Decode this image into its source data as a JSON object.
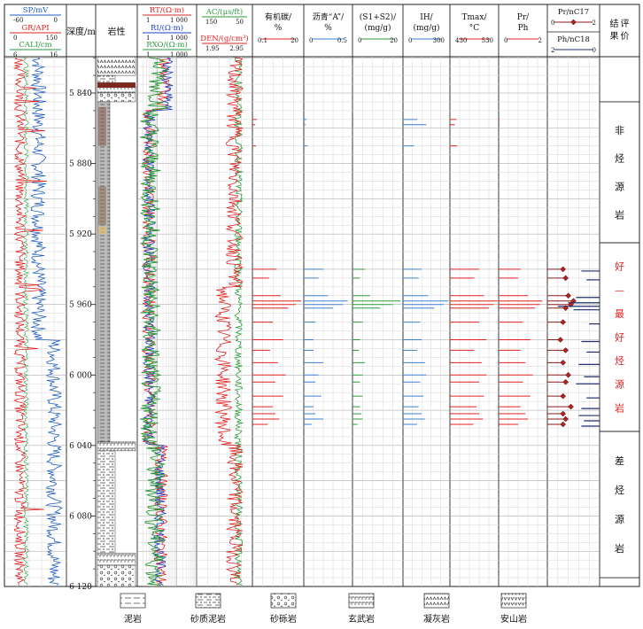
{
  "chart_data": {
    "type": "well-log",
    "depth_axis": {
      "label": "深度/m",
      "range": [
        5810,
        6120
      ],
      "ticks": [
        5840,
        5880,
        5920,
        5960,
        6000,
        6040,
        6080,
        6120
      ],
      "tick_labels": [
        "5 840",
        "5 880",
        "5 920",
        "5 960",
        "6 000",
        "6 040",
        "6 080",
        "6 120"
      ]
    },
    "track1": {
      "curves": [
        {
          "name": "SP/mV",
          "range_labels": [
            "-60",
            "0"
          ],
          "color": "#1f5fbf"
        },
        {
          "name": "GR/API",
          "range_labels": [
            "0",
            "150"
          ],
          "color": "#e02020"
        },
        {
          "name": "CALI/cm",
          "range_labels": [
            "6",
            "16"
          ],
          "color": "#2a9a3a"
        }
      ]
    },
    "lithology_header": "岩性",
    "lithology_intervals": [
      {
        "top": 5810,
        "base": 5830,
        "lith": "凝灰岩"
      },
      {
        "top": 5830,
        "base": 5836,
        "lith": "砂质泥岩"
      },
      {
        "top": 5836,
        "base": 5840,
        "lith": "玄武岩"
      },
      {
        "top": 5840,
        "base": 5845,
        "lith": "砂砾岩"
      },
      {
        "top": 5845,
        "base": 6038,
        "lith": "泥岩"
      },
      {
        "top": 6038,
        "base": 6043,
        "lith": "玄武岩"
      },
      {
        "top": 6043,
        "base": 6101,
        "lith": "砂质泥岩"
      },
      {
        "top": 6101,
        "base": 6108,
        "lith": "玄武岩"
      },
      {
        "top": 6108,
        "base": 6120,
        "lith": "砂砾岩"
      }
    ],
    "track_resistivity": {
      "curves": [
        {
          "name": "RT/(Ω·m)",
          "range_labels": [
            "1",
            "1 000"
          ],
          "color": "#e02020"
        },
        {
          "name": "RI/(Ω·m)",
          "range_labels": [
            "1",
            "1 000"
          ],
          "color": "#1f3fbf"
        },
        {
          "name": "RXO/(Ω·m)",
          "range_labels": [
            "1",
            "1 000"
          ],
          "color": "#2a9a3a"
        }
      ]
    },
    "track_sonic": {
      "curves": [
        {
          "name": "AC/(μs/ft)",
          "range_labels": [
            "150",
            "50"
          ],
          "color": "#2a9a3a"
        },
        {
          "name": "DEN/(g/cm³)",
          "range_labels": [
            "1.95",
            "2.95"
          ],
          "color": "#e02020"
        }
      ]
    },
    "geochem_tracks": [
      {
        "key": "toc",
        "label": "有机碳/%",
        "range": [
          0.1,
          20
        ],
        "range_labels": [
          "0.1",
          "20"
        ],
        "color": "#e02020"
      },
      {
        "key": "bitumen",
        "label": "沥青“A”/%",
        "range": [
          0,
          0.5
        ],
        "range_labels": [
          "0",
          "0.5"
        ],
        "color": "#3a7fcf"
      },
      {
        "key": "s1s2",
        "label": "(S1+S2)/(mg/g)",
        "range": [
          0,
          20
        ],
        "range_labels": [
          "0",
          "20"
        ],
        "color": "#2a9a3a"
      },
      {
        "key": "ih",
        "label": "IH/(mg/g)",
        "range": [
          0,
          300
        ],
        "range_labels": [
          "0",
          "300"
        ],
        "color": "#3a7fcf"
      },
      {
        "key": "tmax",
        "label": "Tmax/°C",
        "range": [
          430,
          530
        ],
        "range_labels": [
          "430",
          "530"
        ],
        "color": "#e02020"
      },
      {
        "key": "prph",
        "label": "Pr/Ph",
        "range": [
          0,
          2
        ],
        "range_labels": [
          "0",
          "2"
        ],
        "color": "#e02020"
      }
    ],
    "ratio_track": {
      "curves": [
        {
          "name": "Pr/nC17",
          "range_labels": [
            "0",
            "2"
          ],
          "color": "#8b1a1a"
        },
        {
          "name": "Ph/nC18",
          "range_labels": [
            "2",
            "0"
          ],
          "color": "#1f2f6f"
        }
      ]
    },
    "samples": [
      {
        "depth": 5855,
        "toc": 1.8,
        "bitumen": 0.03,
        "s1s2": 0.3,
        "ih": 90,
        "tmax": 443,
        "prph": 0
      },
      {
        "depth": 5858,
        "toc": 1.2,
        "bitumen": 0.02,
        "s1s2": 0.2,
        "ih": 150,
        "tmax": 440,
        "prph": 0
      },
      {
        "depth": 5870,
        "toc": 1.5,
        "bitumen": 0.04,
        "s1s2": 0.2,
        "ih": 70,
        "tmax": 445,
        "prph": 0
      },
      {
        "depth": 5940,
        "toc": 9.5,
        "bitumen": 0.2,
        "s1s2": 5,
        "ih": 120,
        "tmax": 490,
        "prph": 0.9,
        "pr_nc17": 0.6,
        "ph_nc18": 0.7
      },
      {
        "depth": 5945,
        "toc": 6.5,
        "bitumen": 0.15,
        "s1s2": 3,
        "ih": 100,
        "tmax": 480,
        "prph": 0.8,
        "pr_nc17": 0.7,
        "ph_nc18": 0.5
      },
      {
        "depth": 5955,
        "toc": 11.0,
        "bitumen": 0.25,
        "s1s2": 7,
        "ih": 160,
        "tmax": 500,
        "prph": 1.2,
        "pr_nc17": 0.8,
        "ph_nc18": 0.9
      },
      {
        "depth": 5958,
        "toc": 19.0,
        "bitumen": 0.45,
        "s1s2": 19,
        "ih": 290,
        "tmax": 528,
        "prph": 1.8,
        "pr_nc17": 1.0,
        "ph_nc18": 1.2
      },
      {
        "depth": 5960,
        "toc": 17.0,
        "bitumen": 0.4,
        "s1s2": 16,
        "ih": 260,
        "tmax": 520,
        "prph": 1.7,
        "pr_nc17": 0.9,
        "ph_nc18": 1.6
      },
      {
        "depth": 5962,
        "toc": 14.0,
        "bitumen": 0.3,
        "s1s2": 11,
        "ih": 200,
        "tmax": 510,
        "prph": 1.5,
        "pr_nc17": 0.7,
        "ph_nc18": 1.0
      },
      {
        "depth": 5970,
        "toc": 8.0,
        "bitumen": 0.12,
        "s1s2": 4,
        "ih": 110,
        "tmax": 490,
        "prph": 1.0,
        "pr_nc17": 0.6,
        "ph_nc18": 0.4
      },
      {
        "depth": 5980,
        "toc": 12.0,
        "bitumen": 0.1,
        "s1s2": 3,
        "ih": 120,
        "tmax": 505,
        "prph": 1.3,
        "pr_nc17": 0.5,
        "ph_nc18": 0.7
      },
      {
        "depth": 5986,
        "toc": 7.0,
        "bitumen": 0.1,
        "s1s2": 2.5,
        "ih": 90,
        "tmax": 480,
        "prph": 0.9,
        "pr_nc17": 0.7,
        "ph_nc18": 0.5
      },
      {
        "depth": 5993,
        "toc": 10.0,
        "bitumen": 0.2,
        "s1s2": 5,
        "ih": 140,
        "tmax": 495,
        "prph": 1.1,
        "pr_nc17": 0.6,
        "ph_nc18": 0.8
      },
      {
        "depth": 6000,
        "toc": 13.0,
        "bitumen": 0.15,
        "s1s2": 4,
        "ih": 150,
        "tmax": 505,
        "prph": 1.4,
        "pr_nc17": 0.8,
        "ph_nc18": 0.6
      },
      {
        "depth": 6004,
        "toc": 9.0,
        "bitumen": 0.12,
        "s1s2": 3,
        "ih": 110,
        "tmax": 490,
        "prph": 1.0,
        "pr_nc17": 0.7,
        "ph_nc18": 0.9
      },
      {
        "depth": 6012,
        "toc": 12.0,
        "bitumen": 0.18,
        "s1s2": 4,
        "ih": 130,
        "tmax": 500,
        "prph": 1.3,
        "pr_nc17": 0.6,
        "ph_nc18": 0.5
      },
      {
        "depth": 6018,
        "toc": 8.0,
        "bitumen": 0.1,
        "s1s2": 3,
        "ih": 100,
        "tmax": 485,
        "prph": 0.9,
        "pr_nc17": 0.9,
        "ph_nc18": 0.7
      },
      {
        "depth": 6022,
        "toc": 9.0,
        "bitumen": 0.12,
        "s1s2": 3.5,
        "ih": 120,
        "tmax": 490,
        "prph": 1.1,
        "pr_nc17": 0.6,
        "ph_nc18": 0.8
      },
      {
        "depth": 6025,
        "toc": 10.5,
        "bitumen": 0.2,
        "s1s2": 4,
        "ih": 140,
        "tmax": 498,
        "prph": 1.2,
        "pr_nc17": 0.7,
        "ph_nc18": 0.6
      },
      {
        "depth": 6028,
        "toc": 6.0,
        "bitumen": 0.08,
        "s1s2": 2,
        "ih": 90,
        "tmax": 478,
        "prph": 0.8,
        "pr_nc17": 0.6,
        "ph_nc18": 0.7
      }
    ],
    "evaluation": {
      "header": "评价结果",
      "zones": [
        {
          "top": 5845,
          "base": 5925,
          "label": "非烃源岩",
          "color": "#111111"
        },
        {
          "top": 5925,
          "base": 6032,
          "label": "好—最好烃源岩",
          "color": "#e02020"
        },
        {
          "top": 6032,
          "base": 6115,
          "label": "差烃源岩",
          "color": "#111111"
        }
      ]
    },
    "legend": [
      {
        "pattern": "mudstone",
        "label": "泥岩"
      },
      {
        "pattern": "sandy-mudstone",
        "label": "砂质泥岩"
      },
      {
        "pattern": "conglomerate",
        "label": "砂砾岩"
      },
      {
        "pattern": "basalt",
        "label": "玄武岩"
      },
      {
        "pattern": "tuff",
        "label": "凝灰岩"
      },
      {
        "pattern": "andesite",
        "label": "安山岩"
      }
    ],
    "grid": true
  }
}
